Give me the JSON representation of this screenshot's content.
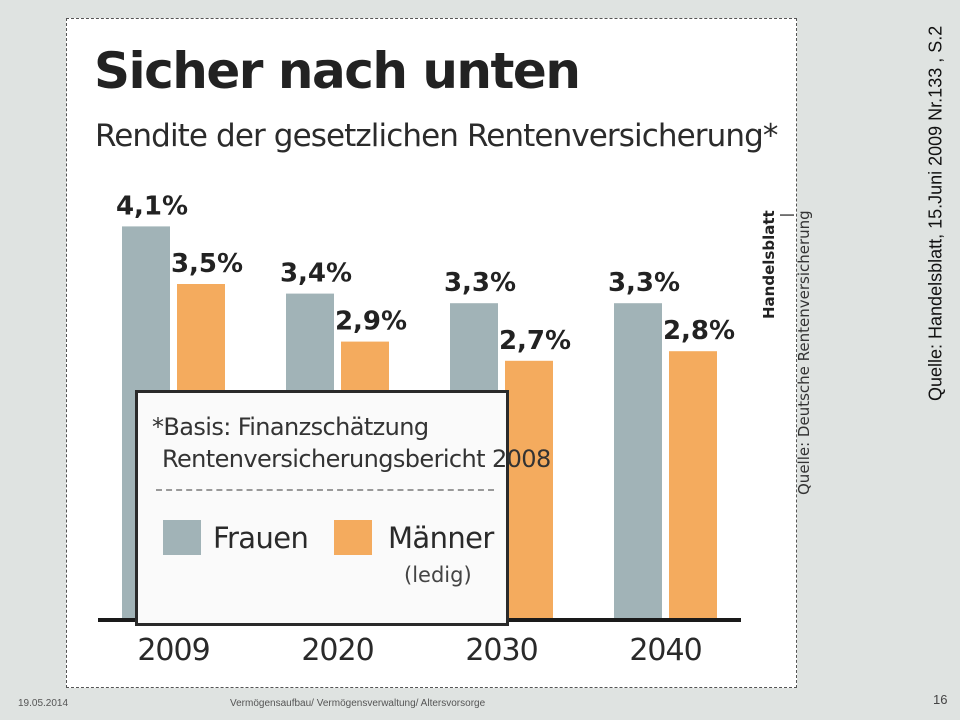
{
  "chart_data": {
    "type": "bar",
    "title": "Sicher nach unten",
    "subtitle": "Rendite der gesetzlichen Rentenversicherung*",
    "categories": [
      "2009",
      "2020",
      "2030",
      "2040"
    ],
    "series": [
      {
        "name": "Frauen",
        "values": [
          4.1,
          3.4,
          3.3,
          3.3
        ],
        "labels": [
          "4,1%",
          "3,4%",
          "3,3%",
          "3,3%"
        ],
        "color": "#a1b3b7"
      },
      {
        "name": "Männer",
        "values": [
          3.5,
          2.9,
          2.7,
          2.8
        ],
        "labels": [
          "3,5%",
          "2,9%",
          "2,7%",
          "2,8%"
        ],
        "color": "#f4ab5e"
      }
    ],
    "ylim": [
      0,
      4.5
    ],
    "grid": false,
    "legend_placement": "bottom-left"
  },
  "footnote": {
    "line1": "*Basis: Finanzschätzung",
    "line2": "Rentenversicherungsbericht 2008"
  },
  "legend": {
    "frauen_label": "Frauen",
    "maenner_label": "Männer",
    "maenner_note": "(ledig)"
  },
  "credit": {
    "brand": "Handelsblatt",
    "separator": "|",
    "source": "Quelle: Deutsche Rentenversicherung"
  },
  "side_source": "Quelle:  Handelsblatt,  15.Juni 2009 Nr.133 , S.2",
  "footer": {
    "date": "19.05.2014",
    "center_text": "Vermögensaufbau/ Vermögensverwaltung/ Altersvorsorge",
    "page_number": "16"
  }
}
